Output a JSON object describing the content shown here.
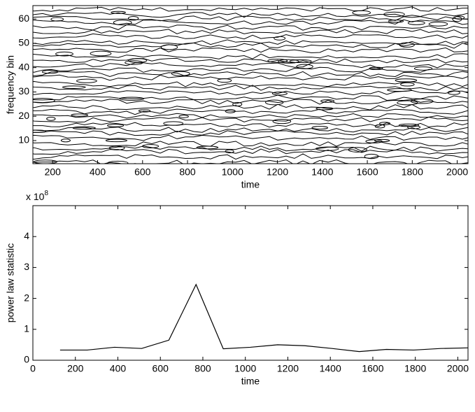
{
  "chart_data": [
    {
      "type": "contour",
      "xlabel": "time",
      "ylabel": "frequency bin",
      "xlim": [
        112,
        2048
      ],
      "ylim": [
        0.5,
        65.5
      ],
      "xticks": [
        200,
        400,
        600,
        800,
        1000,
        1200,
        1400,
        1600,
        1800,
        2000
      ],
      "yticks": [
        10,
        20,
        30,
        40,
        50,
        60
      ]
    },
    {
      "type": "line",
      "xlabel": "time",
      "ylabel": "power law statistic",
      "offset_text": {
        "base": "x 10",
        "exponent": "8"
      },
      "xlim": [
        0,
        2048
      ],
      "ylim": [
        0,
        5
      ],
      "xticks": [
        0,
        200,
        400,
        600,
        800,
        1000,
        1200,
        1400,
        1600,
        1800,
        2000
      ],
      "yticks": [
        0,
        1,
        2,
        3,
        4
      ],
      "x": [
        128,
        256,
        384,
        512,
        640,
        768,
        896,
        1024,
        1152,
        1280,
        1408,
        1536,
        1664,
        1792,
        1920,
        2048
      ],
      "series": [
        {
          "color": "#000000",
          "values": [
            0.33,
            0.33,
            0.42,
            0.38,
            0.65,
            2.45,
            0.37,
            0.42,
            0.5,
            0.47,
            0.38,
            0.28,
            0.35,
            0.33,
            0.38,
            0.4
          ]
        }
      ]
    }
  ]
}
